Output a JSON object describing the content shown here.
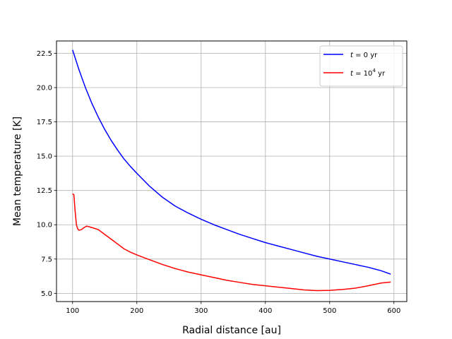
{
  "chart_data": {
    "type": "line",
    "title": "",
    "xlabel": "Radial distance [au]",
    "ylabel": "Mean temperature [K]",
    "xlim": [
      75,
      620
    ],
    "ylim": [
      4.4,
      23.4
    ],
    "xticks": [
      100,
      200,
      300,
      400,
      500,
      600
    ],
    "yticks": [
      5.0,
      7.5,
      10.0,
      12.5,
      15.0,
      17.5,
      20.0,
      22.5
    ],
    "xtick_labels": [
      "100",
      "200",
      "300",
      "400",
      "500",
      "600"
    ],
    "ytick_labels": [
      "5.0",
      "7.5",
      "10.0",
      "12.5",
      "15.0",
      "17.5",
      "20.0",
      "22.5"
    ],
    "grid": true,
    "legend_position": "top-right",
    "series": [
      {
        "name": "t = 0 yr",
        "color": "#0000ff",
        "x": [
          100,
          110,
          120,
          130,
          140,
          150,
          160,
          170,
          180,
          190,
          200,
          220,
          240,
          260,
          280,
          300,
          320,
          340,
          360,
          380,
          400,
          420,
          440,
          460,
          480,
          500,
          520,
          540,
          560,
          580,
          595
        ],
        "y": [
          22.75,
          21.3,
          20.0,
          18.85,
          17.85,
          16.95,
          16.15,
          15.45,
          14.8,
          14.25,
          13.75,
          12.8,
          12.0,
          11.35,
          10.85,
          10.4,
          10.0,
          9.65,
          9.3,
          9.0,
          8.7,
          8.45,
          8.2,
          7.95,
          7.7,
          7.5,
          7.3,
          7.1,
          6.9,
          6.65,
          6.4
        ]
      },
      {
        "name": "t = 10^4 yr",
        "color": "#ff0000",
        "x": [
          100,
          102,
          104,
          106,
          108,
          110,
          114,
          118,
          122,
          126,
          130,
          140,
          150,
          160,
          170,
          180,
          190,
          200,
          220,
          240,
          260,
          280,
          300,
          320,
          340,
          360,
          380,
          400,
          420,
          440,
          460,
          480,
          500,
          520,
          540,
          560,
          580,
          595
        ],
        "y": [
          12.25,
          12.2,
          11.0,
          10.0,
          9.7,
          9.6,
          9.65,
          9.8,
          9.9,
          9.85,
          9.8,
          9.65,
          9.3,
          8.95,
          8.6,
          8.25,
          8.0,
          7.8,
          7.45,
          7.1,
          6.8,
          6.55,
          6.35,
          6.15,
          5.95,
          5.8,
          5.65,
          5.55,
          5.45,
          5.35,
          5.25,
          5.2,
          5.22,
          5.28,
          5.38,
          5.55,
          5.75,
          5.82
        ]
      }
    ],
    "legend": [
      {
        "prefix": "t",
        "text": " = 0 yr",
        "sup": ""
      },
      {
        "prefix": "t",
        "text": " = 10",
        "sup": "4",
        "suffix": " yr"
      }
    ]
  }
}
